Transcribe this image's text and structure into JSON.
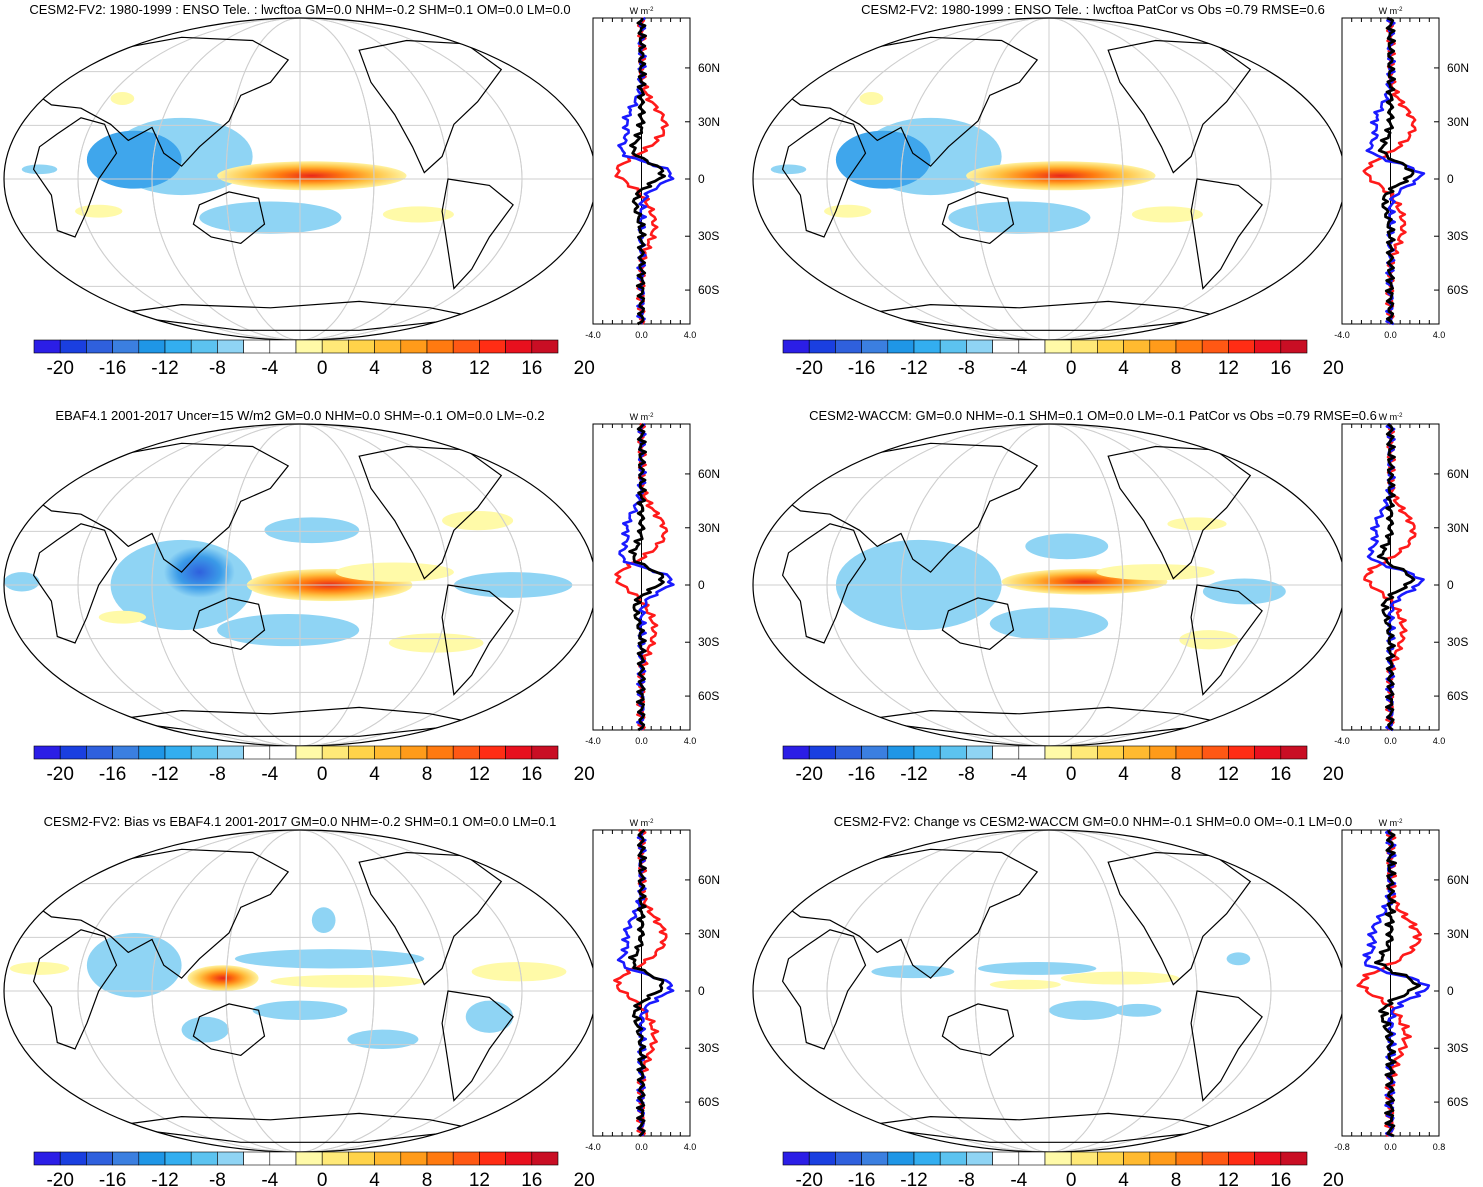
{
  "colorbar": {
    "colors": [
      "#2b1ee6",
      "#1a3fe0",
      "#2f60dd",
      "#3b7fe0",
      "#1f96e6",
      "#33aef0",
      "#5cc3f0",
      "#8fd4f4",
      "#ffffff",
      "#ffffff",
      "#fffaa8",
      "#ffe978",
      "#ffd34a",
      "#ffba30",
      "#ff9b1a",
      "#ff7a10",
      "#ff5814",
      "#ff2d14",
      "#e8101e",
      "#c90e24"
    ],
    "labels": [
      "-20",
      "-16",
      "-12",
      "-8",
      "-4",
      "0",
      "4",
      "8",
      "12",
      "16",
      "20"
    ]
  },
  "zonal_lat_ticks": [
    "60N",
    "30N",
    "0",
    "30S",
    "60S"
  ],
  "zonal_unit": "W m",
  "zonal_unit_sup": "-2",
  "panels": [
    {
      "id": "a",
      "title": "CESM2-FV2: 1980-1999 : ENSO Tele. : lwcftoa GM=0.0 NHM=-0.2 SHM=0.1 OM=0.0 LM=0.0",
      "zonal_ticks": [
        "-4.0",
        "0.0",
        "4.0"
      ]
    },
    {
      "id": "b",
      "title": "CESM2-FV2: 1980-1999 : ENSO Tele. : lwcftoa PatCor vs Obs =0.79 RMSE=0.6",
      "zonal_ticks": [
        "-4.0",
        "0.0",
        "4.0"
      ]
    },
    {
      "id": "c",
      "title": "EBAF4.1 2001-2017 Uncer=15 W/m2 GM=0.0 NHM=0.0 SHM=-0.1 OM=0.0 LM=-0.2",
      "zonal_ticks": [
        "-4.0",
        "0.0",
        "4.0"
      ]
    },
    {
      "id": "d",
      "title": "CESM2-WACCM: GM=0.0 NHM=-0.1 SHM=0.1 OM=0.0 LM=-0.1 PatCor vs Obs =0.79 RMSE=0.6",
      "zonal_ticks": [
        "-4.0",
        "0.0",
        "4.0"
      ]
    },
    {
      "id": "e",
      "title": "CESM2-FV2: Bias vs EBAF4.1 2001-2017 GM=0.0 NHM=-0.2 SHM=0.1 OM=0.0 LM=0.1",
      "zonal_ticks": [
        "-4.0",
        "0.0",
        "4.0"
      ]
    },
    {
      "id": "f",
      "title": "CESM2-FV2: Change vs CESM2-WACCM GM=0.0 NHM=-0.1 SHM=0.0 OM=-0.1 LM=0.0",
      "zonal_ticks": [
        "-0.8",
        "0.0",
        "0.8"
      ]
    }
  ]
}
